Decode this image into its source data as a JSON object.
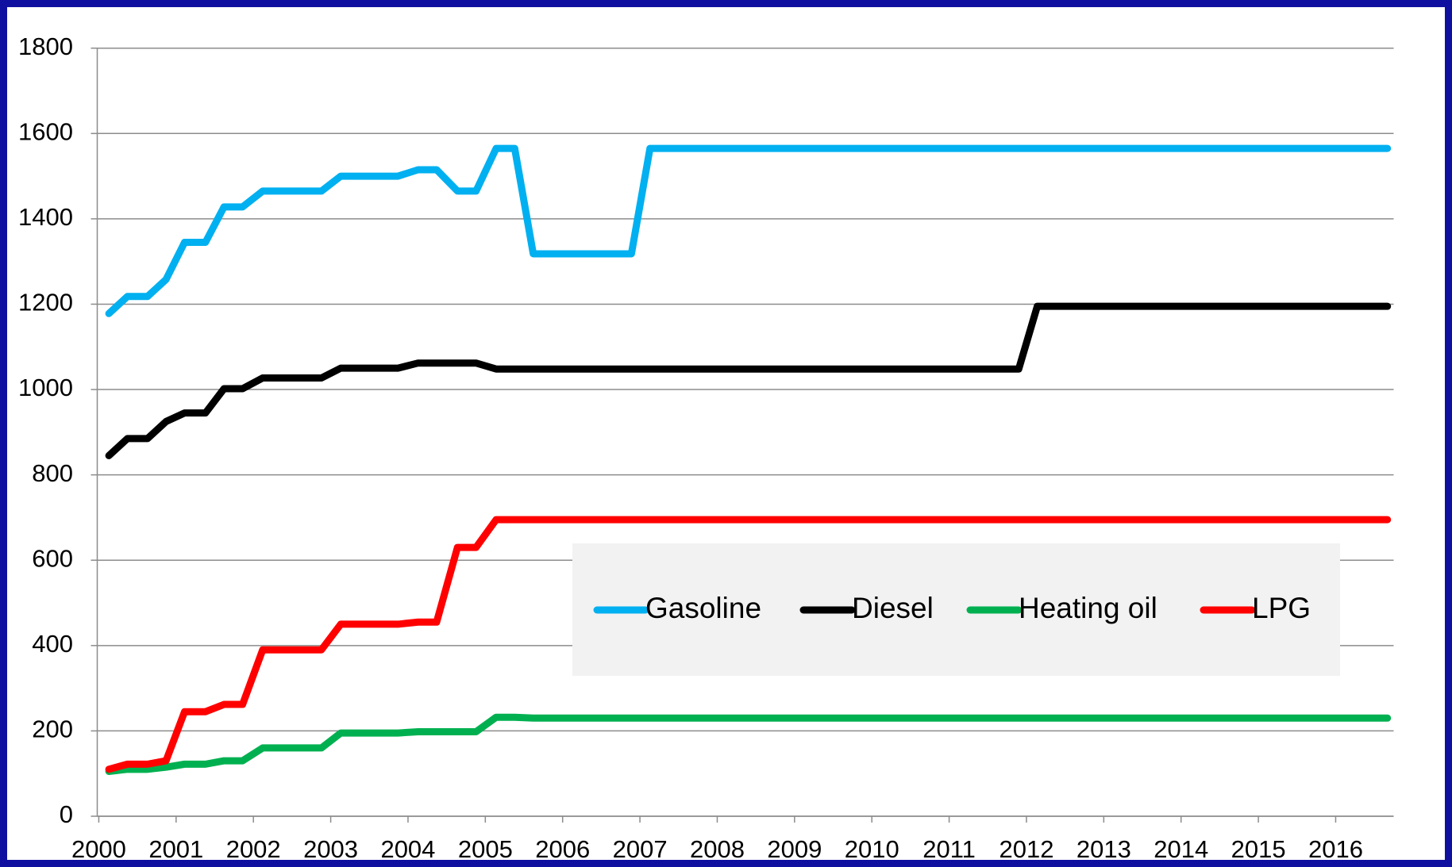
{
  "chart_data": {
    "type": "line",
    "x": [
      2000.13,
      2000.37,
      2000.63,
      2000.87,
      2001.11,
      2001.38,
      2001.62,
      2001.86,
      2002.12,
      2002.88,
      2003.13,
      2003.87,
      2004.13,
      2004.37,
      2004.64,
      2004.88,
      2005.14,
      2005.38,
      2005.62,
      2006.89,
      2007.13,
      2011.9,
      2012.14,
      2016.67
    ],
    "series": [
      {
        "name": "Gasoline",
        "color": "#00b0f0",
        "values": [
          1178,
          1218,
          1218,
          1258,
          1345,
          1345,
          1428,
          1428,
          1465,
          1465,
          1500,
          1500,
          1515,
          1515,
          1465,
          1465,
          1565,
          1565,
          1318,
          1318,
          1565,
          1565,
          1565,
          1565
        ]
      },
      {
        "name": "Diesel",
        "color": "#000000",
        "values": [
          845,
          885,
          885,
          925,
          945,
          945,
          1002,
          1002,
          1027,
          1027,
          1050,
          1050,
          1062,
          1062,
          1062,
          1062,
          1048,
          1048,
          1048,
          1048,
          1048,
          1048,
          1195,
          1195
        ]
      },
      {
        "name": "Heating oil",
        "color": "#00b050",
        "values": [
          105,
          110,
          110,
          115,
          122,
          122,
          130,
          130,
          160,
          160,
          195,
          195,
          198,
          198,
          198,
          198,
          232,
          232,
          230,
          230,
          230,
          230,
          230,
          230
        ]
      },
      {
        "name": "LPG",
        "color": "#ff0000",
        "values": [
          110,
          122,
          122,
          130,
          245,
          245,
          262,
          262,
          390,
          390,
          450,
          450,
          455,
          455,
          630,
          630,
          695,
          695,
          695,
          695,
          695,
          695,
          695,
          695
        ]
      }
    ],
    "xlim": [
      1999.98,
      2016.75
    ],
    "xticks": [
      2000,
      2001,
      2002,
      2003,
      2004,
      2005,
      2006,
      2007,
      2008,
      2009,
      2010,
      2011,
      2012,
      2013,
      2014,
      2015,
      2016
    ],
    "ylim": [
      0,
      1800
    ],
    "yticks": [
      0,
      200,
      400,
      600,
      800,
      1000,
      1200,
      1400,
      1600,
      1800
    ],
    "grid": true
  }
}
